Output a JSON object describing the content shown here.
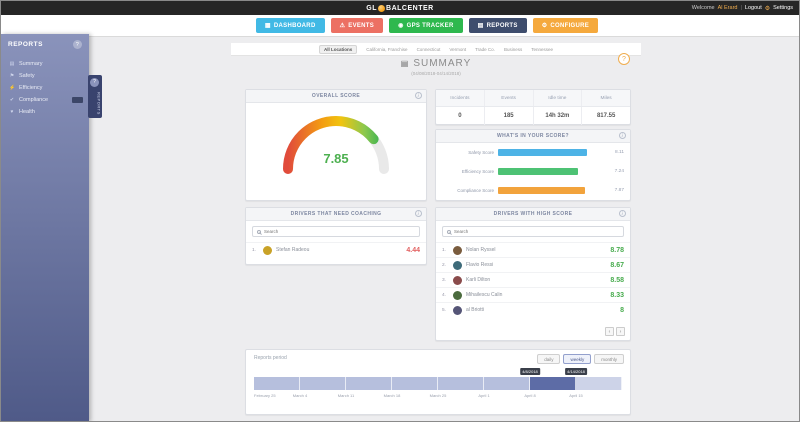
{
  "icons": {
    "gear": "⚙",
    "help": "?",
    "info": "i",
    "summary_title": "▤"
  },
  "topbar": {
    "logo_gl": "GL",
    "logo_rest": "BALCENTER",
    "welcome_label": "Welcome",
    "user_name": "Al Erard",
    "divider": "|",
    "logout_label": "Logout",
    "settings_label": "Settings"
  },
  "nav": {
    "items": [
      {
        "label": "DASHBOARD",
        "glyph": "▦",
        "color": "#41b9e5"
      },
      {
        "label": "EVENTS",
        "glyph": "⚠",
        "color": "#ec7063"
      },
      {
        "label": "GPS TRACKER",
        "glyph": "◉",
        "color": "#2eb84e"
      },
      {
        "label": "REPORTS",
        "glyph": "▤",
        "color": "#3e4d6d"
      },
      {
        "label": "CONFIGURE",
        "glyph": "⚙",
        "color": "#f5a93d"
      }
    ]
  },
  "sidebar": {
    "title": "REPORTS",
    "collapse_tab_label": "REPORTS",
    "items": [
      {
        "label": "Summary",
        "glyph": "▤"
      },
      {
        "label": "Safety",
        "glyph": "⚑"
      },
      {
        "label": "Efficiency",
        "glyph": "⚡"
      },
      {
        "label": "Compliance",
        "glyph": "✔"
      },
      {
        "label": "Health",
        "glyph": "♥"
      }
    ]
  },
  "tabs": {
    "items": [
      {
        "label": "All Locations"
      },
      {
        "label": "California, Franchise"
      },
      {
        "label": "Connecticut"
      },
      {
        "label": "Vermont"
      },
      {
        "label": "Trade Co."
      },
      {
        "label": "Business"
      },
      {
        "label": "Tennessee"
      }
    ]
  },
  "summary": {
    "title": "SUMMARY",
    "date_range": "(04/08/2018-04/14/2018)"
  },
  "overall": {
    "header": "OVERALL SCORE",
    "value": "7.85",
    "value_num": 7.85,
    "max": 10
  },
  "stats": {
    "columns": [
      {
        "label": "Incidents",
        "value": "0"
      },
      {
        "label": "Events",
        "value": "185"
      },
      {
        "label": "Idle time",
        "value": "14h 32m"
      },
      {
        "label": "Miles",
        "value": "817.55"
      }
    ]
  },
  "score_breakdown": {
    "header": "WHAT'S IN YOUR SCORE?",
    "rows": [
      {
        "label": "Safety Score",
        "value": "8.11",
        "num": 8.11,
        "color": "#4db3e6"
      },
      {
        "label": "Efficiency Score",
        "value": "7.24",
        "num": 7.24,
        "color": "#4dc274"
      },
      {
        "label": "Compliance Score",
        "value": "7.87",
        "num": 7.87,
        "color": "#f2a33c"
      }
    ]
  },
  "coaching": {
    "header": "DRIVERS THAT NEED COACHING",
    "search_placeholder": "Search",
    "rows": [
      {
        "rank": "1.",
        "name": "Stefan Radeou",
        "score": "4.44",
        "avatar_color": "#c9a227"
      }
    ]
  },
  "high_score": {
    "header": "DRIVERS WITH HIGH SCORE",
    "search_placeholder": "Search",
    "rows": [
      {
        "rank": "1.",
        "name": "Nolan Ryssel",
        "score": "8.78",
        "avatar_color": "#7a5c3e"
      },
      {
        "rank": "2.",
        "name": "Flavio Ressi",
        "score": "8.67",
        "avatar_color": "#3e6b7a"
      },
      {
        "rank": "3.",
        "name": "Karli Dilton",
        "score": "8.58",
        "avatar_color": "#8a4b4b"
      },
      {
        "rank": "4.",
        "name": "Mihailescu Calin",
        "score": "8.33",
        "avatar_color": "#4b6b3e"
      },
      {
        "rank": "5.",
        "name": "al Briotti",
        "score": "8",
        "avatar_color": "#555577"
      }
    ],
    "pagination": {
      "prev": "‹",
      "next": "›"
    }
  },
  "period": {
    "label": "Reports period",
    "buttons": [
      {
        "label": "daily"
      },
      {
        "label": "weekly",
        "active": true
      },
      {
        "label": "monthly"
      }
    ],
    "ticks": [
      "February 25",
      "March 4",
      "March 11",
      "March 18",
      "March 25",
      "April 1",
      "April 8",
      "April 15"
    ],
    "selected_segment": 6,
    "selection_start_label": "4/8/2018",
    "selection_end_label": "4/14/2018"
  }
}
